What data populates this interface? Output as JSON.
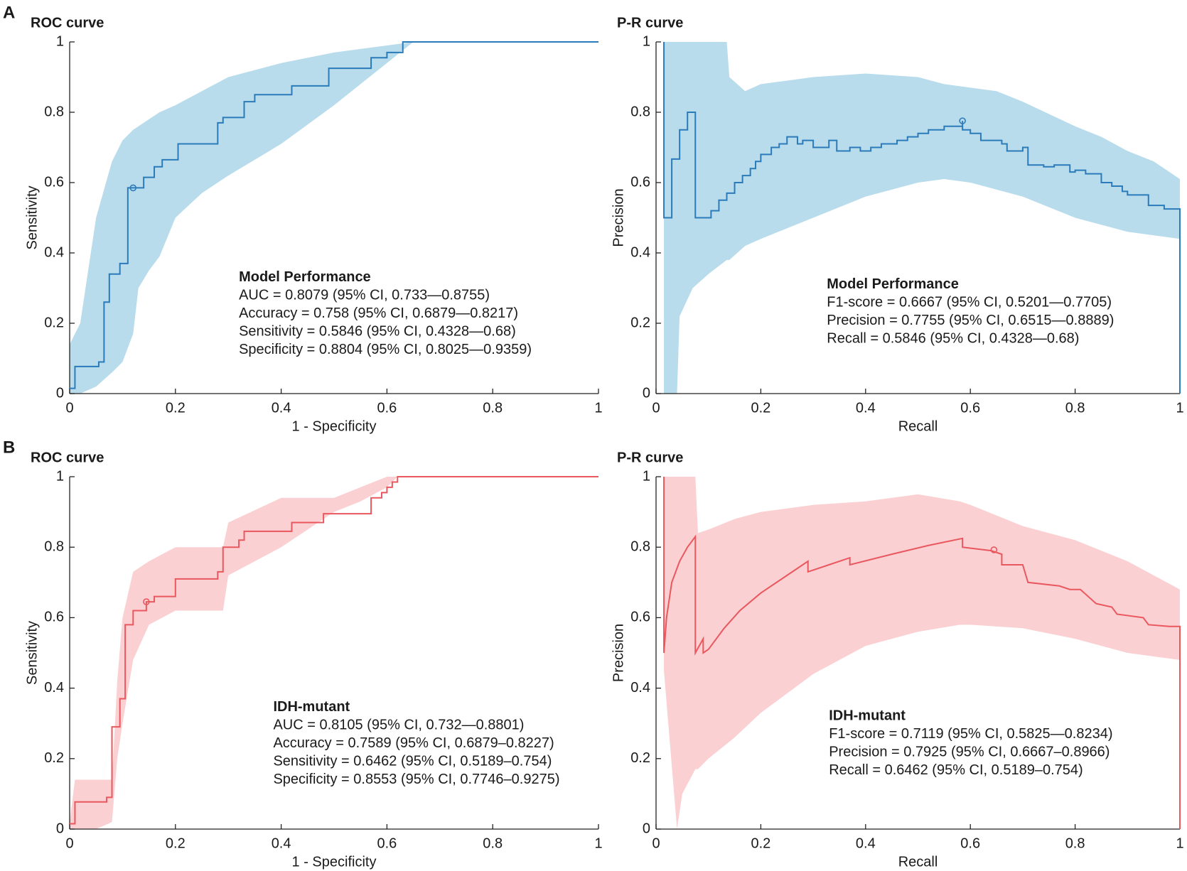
{
  "chart_data": [
    {
      "type": "line",
      "panel": "A",
      "title": "ROC curve",
      "xlabel": "1 - Specificity",
      "ylabel": "Sensitivity",
      "xlim": [
        0,
        1
      ],
      "ylim": [
        0,
        1
      ],
      "xticks": [
        0,
        0.2,
        0.4,
        0.6,
        0.8,
        1
      ],
      "yticks": [
        0,
        0.2,
        0.4,
        0.6,
        0.8,
        1
      ],
      "color": "#2b7bba",
      "band_color": "#b8dcec",
      "step": true,
      "x": [
        0,
        0.01,
        0.055,
        0.065,
        0.075,
        0.095,
        0.11,
        0.14,
        0.16,
        0.175,
        0.205,
        0.28,
        0.29,
        0.33,
        0.35,
        0.42,
        0.49,
        0.57,
        0.6,
        0.63,
        1
      ],
      "y": [
        0.015,
        0.077,
        0.09,
        0.26,
        0.34,
        0.37,
        0.585,
        0.615,
        0.645,
        0.665,
        0.71,
        0.77,
        0.785,
        0.83,
        0.85,
        0.875,
        0.925,
        0.955,
        0.97,
        1,
        1
      ],
      "band": {
        "x": [
          0,
          0.02,
          0.05,
          0.08,
          0.1,
          0.12,
          0.13,
          0.15,
          0.17,
          0.2,
          0.25,
          0.3,
          0.4,
          0.5,
          0.6,
          0.65,
          0.72,
          1
        ],
        "upper": [
          0.14,
          0.2,
          0.5,
          0.66,
          0.72,
          0.75,
          0.76,
          0.78,
          0.8,
          0.82,
          0.86,
          0.9,
          0.94,
          0.97,
          0.99,
          1,
          1,
          1
        ],
        "lower": [
          0,
          0,
          0.02,
          0.06,
          0.09,
          0.17,
          0.3,
          0.35,
          0.39,
          0.5,
          0.57,
          0.62,
          0.71,
          0.82,
          0.94,
          1,
          1,
          1
        ]
      },
      "point": {
        "x": 0.12,
        "y": 0.585
      },
      "annotation": {
        "title": "Model Performance",
        "lines": [
          "AUC = 0.8079 (95% CI, 0.733—0.8755)",
          "Accuracy = 0.758 (95% CI, 0.6879—0.8217)",
          "Sensitivity = 0.5846 (95% CI, 0.4328—0.68)",
          "Specificity = 0.8804 (95% CI, 0.8025—0.9359)"
        ]
      }
    },
    {
      "type": "line",
      "title": "P-R curve",
      "xlabel": "Recall",
      "ylabel": "Precision",
      "xlim": [
        0,
        1
      ],
      "ylim": [
        0,
        1
      ],
      "xticks": [
        0,
        0.2,
        0.4,
        0.6,
        0.8,
        1
      ],
      "yticks": [
        0,
        0.2,
        0.4,
        0.6,
        0.8,
        1
      ],
      "color": "#2b7bba",
      "band_color": "#b8dcec",
      "step": true,
      "x": [
        0.015,
        0.015,
        0.03,
        0.045,
        0.06,
        0.075,
        0.105,
        0.12,
        0.135,
        0.15,
        0.165,
        0.18,
        0.19,
        0.2,
        0.22,
        0.235,
        0.25,
        0.27,
        0.28,
        0.3,
        0.33,
        0.345,
        0.37,
        0.39,
        0.41,
        0.43,
        0.46,
        0.48,
        0.5,
        0.52,
        0.55,
        0.585,
        0.585,
        0.6,
        0.62,
        0.66,
        0.67,
        0.7,
        0.71,
        0.74,
        0.76,
        0.79,
        0.8,
        0.82,
        0.85,
        0.87,
        0.89,
        0.9,
        0.94,
        0.97,
        1,
        1
      ],
      "y": [
        1,
        0.5,
        0.667,
        0.75,
        0.8,
        0.5,
        0.52,
        0.55,
        0.57,
        0.6,
        0.62,
        0.64,
        0.66,
        0.68,
        0.7,
        0.71,
        0.73,
        0.71,
        0.72,
        0.7,
        0.72,
        0.69,
        0.7,
        0.69,
        0.7,
        0.71,
        0.72,
        0.73,
        0.74,
        0.75,
        0.76,
        0.7755,
        0.75,
        0.74,
        0.72,
        0.71,
        0.69,
        0.7,
        0.65,
        0.645,
        0.65,
        0.63,
        0.635,
        0.625,
        0.6,
        0.59,
        0.575,
        0.565,
        0.535,
        0.525,
        0.525,
        0
      ],
      "band": {
        "x": [
          0.015,
          0.04,
          0.045,
          0.07,
          0.1,
          0.135,
          0.14,
          0.17,
          0.2,
          0.25,
          0.3,
          0.4,
          0.5,
          0.55,
          0.6,
          0.65,
          0.7,
          0.8,
          0.85,
          0.9,
          0.95,
          1
        ],
        "upper": [
          1,
          1,
          1,
          1,
          1,
          1,
          0.9,
          0.86,
          0.88,
          0.89,
          0.9,
          0.91,
          0.9,
          0.88,
          0.87,
          0.86,
          0.83,
          0.76,
          0.73,
          0.69,
          0.66,
          0.61
        ],
        "lower": [
          0,
          0,
          0.22,
          0.3,
          0.34,
          0.38,
          0.38,
          0.42,
          0.44,
          0.47,
          0.5,
          0.56,
          0.6,
          0.61,
          0.6,
          0.58,
          0.56,
          0.5,
          0.48,
          0.46,
          0.45,
          0.44
        ]
      },
      "point": {
        "x": 0.585,
        "y": 0.7755
      },
      "annotation": {
        "title": "Model Performance",
        "lines": [
          "F1-score = 0.6667 (95% CI, 0.5201—0.7705)",
          "Precision = 0.7755 (95% CI, 0.6515—0.8889)",
          "Recall = 0.5846 (95% CI, 0.4328—0.68)"
        ]
      }
    },
    {
      "type": "line",
      "panel": "B",
      "title": "ROC curve",
      "xlabel": "1 - Specificity",
      "ylabel": "Sensitivity",
      "xlim": [
        0,
        1
      ],
      "ylim": [
        0,
        1
      ],
      "xticks": [
        0,
        0.2,
        0.4,
        0.6,
        0.8,
        1
      ],
      "yticks": [
        0,
        0.2,
        0.4,
        0.6,
        0.8,
        1
      ],
      "color": "#e8585e",
      "band_color": "#fbd0d2",
      "step": true,
      "x": [
        0,
        0.01,
        0.07,
        0.08,
        0.095,
        0.105,
        0.12,
        0.145,
        0.16,
        0.2,
        0.28,
        0.29,
        0.32,
        0.33,
        0.42,
        0.48,
        0.57,
        0.59,
        0.6,
        0.61,
        0.62,
        1
      ],
      "y": [
        0.015,
        0.077,
        0.09,
        0.29,
        0.37,
        0.58,
        0.62,
        0.645,
        0.66,
        0.71,
        0.73,
        0.8,
        0.82,
        0.845,
        0.87,
        0.895,
        0.94,
        0.955,
        0.97,
        0.985,
        1,
        1
      ],
      "band": {
        "x": [
          0,
          0.01,
          0.05,
          0.08,
          0.09,
          0.1,
          0.12,
          0.15,
          0.2,
          0.29,
          0.3,
          0.4,
          0.5,
          0.55,
          0.6,
          0.62,
          1
        ],
        "upper": [
          0.02,
          0.14,
          0.14,
          0.14,
          0.42,
          0.6,
          0.73,
          0.76,
          0.8,
          0.8,
          0.87,
          0.94,
          0.94,
          0.97,
          1,
          1,
          1
        ],
        "lower": [
          0,
          0,
          0,
          0.02,
          0.2,
          0.3,
          0.48,
          0.58,
          0.62,
          0.62,
          0.72,
          0.8,
          0.9,
          0.93,
          0.97,
          1,
          1
        ]
      },
      "point": {
        "x": 0.145,
        "y": 0.645
      },
      "annotation": {
        "title": "IDH-mutant",
        "lines": [
          "AUC = 0.8105 (95% CI, 0.732—0.8801)",
          "Accuracy = 0.7589 (95% CI, 0.6879–0.8227)",
          "Sensitivity = 0.6462 (95% CI, 0.5189–0.754)",
          "Specificity = 0.8553 (95% CI, 0.7746–0.9275)"
        ]
      }
    },
    {
      "type": "line",
      "title": "P-R curve",
      "xlabel": "Recall",
      "ylabel": "Precision",
      "xlim": [
        0,
        1
      ],
      "ylim": [
        0,
        1
      ],
      "xticks": [
        0,
        0.2,
        0.4,
        0.6,
        0.8,
        1
      ],
      "yticks": [
        0,
        0.2,
        0.4,
        0.6,
        0.8,
        1
      ],
      "color": "#e8585e",
      "band_color": "#fbd0d2",
      "step": false,
      "x": [
        0.015,
        0.015,
        0.02,
        0.03,
        0.045,
        0.06,
        0.075,
        0.075,
        0.09,
        0.09,
        0.1,
        0.13,
        0.16,
        0.2,
        0.25,
        0.29,
        0.29,
        0.33,
        0.37,
        0.37,
        0.45,
        0.52,
        0.585,
        0.585,
        0.64,
        0.66,
        0.66,
        0.7,
        0.71,
        0.77,
        0.79,
        0.81,
        0.84,
        0.87,
        0.88,
        0.93,
        0.94,
        0.98,
        1,
        1
      ],
      "y": [
        1,
        0.5,
        0.6,
        0.7,
        0.76,
        0.8,
        0.83,
        0.5,
        0.54,
        0.5,
        0.51,
        0.57,
        0.62,
        0.67,
        0.72,
        0.76,
        0.73,
        0.75,
        0.77,
        0.75,
        0.78,
        0.805,
        0.825,
        0.8,
        0.79,
        0.78,
        0.75,
        0.75,
        0.7,
        0.69,
        0.68,
        0.68,
        0.64,
        0.63,
        0.61,
        0.6,
        0.58,
        0.575,
        0.575,
        0
      ],
      "band": {
        "x": [
          0.015,
          0.04,
          0.05,
          0.075,
          0.08,
          0.1,
          0.15,
          0.2,
          0.3,
          0.4,
          0.5,
          0.58,
          0.6,
          0.7,
          0.8,
          0.9,
          1
        ],
        "upper": [
          1,
          1,
          1,
          1,
          0.84,
          0.85,
          0.88,
          0.9,
          0.92,
          0.93,
          0.95,
          0.93,
          0.92,
          0.86,
          0.82,
          0.76,
          0.68
        ],
        "lower": [
          0.45,
          0,
          0.1,
          0.17,
          0.17,
          0.2,
          0.26,
          0.33,
          0.44,
          0.52,
          0.56,
          0.58,
          0.58,
          0.57,
          0.54,
          0.5,
          0.48
        ]
      },
      "point": {
        "x": 0.645,
        "y": 0.7925
      },
      "annotation": {
        "title": "IDH-mutant",
        "lines": [
          "F1-score = 0.7119 (95% CI, 0.5825—0.8234)",
          "Precision = 0.7925 (95% CI, 0.6667–0.8966)",
          "Recall = 0.6462 (95% CI, 0.5189–0.754)"
        ]
      }
    }
  ]
}
